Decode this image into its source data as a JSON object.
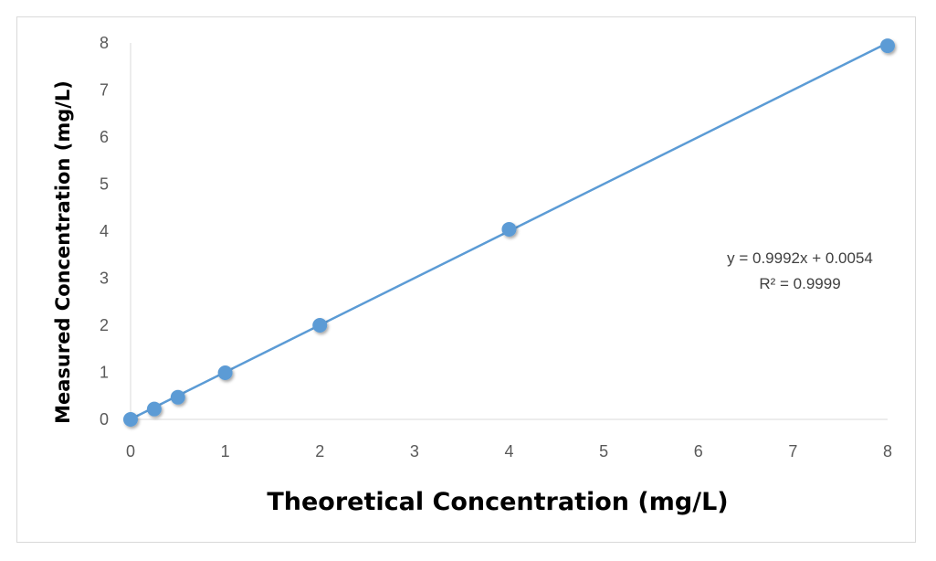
{
  "chart_data": {
    "type": "scatter",
    "title": "",
    "xlabel": "Theoretical Concentration (mg/L)",
    "ylabel": "Measured Concentration (mg/L)",
    "xlim": [
      0,
      8
    ],
    "ylim": [
      0,
      8
    ],
    "x_ticks": [
      "0",
      "1",
      "2",
      "3",
      "4",
      "5",
      "6",
      "7",
      "8"
    ],
    "y_ticks": [
      "0",
      "1",
      "2",
      "3",
      "4",
      "5",
      "6",
      "7",
      "8"
    ],
    "grid": false,
    "legend": "none",
    "series": [
      {
        "x": [
          0,
          0.25,
          0.5,
          1,
          2,
          4,
          8
        ],
        "y": [
          0.0,
          0.22,
          0.47,
          0.99,
          2.0,
          4.04,
          7.94
        ],
        "color": "#5b9bd5"
      }
    ],
    "trendline": {
      "type": "linear",
      "slope": 0.9992,
      "intercept": 0.0054,
      "color": "#5b9bd5"
    },
    "annotations": {
      "equation": "y = 0.9992x + 0.0054",
      "r_squared": "R² = 0.9999"
    }
  }
}
